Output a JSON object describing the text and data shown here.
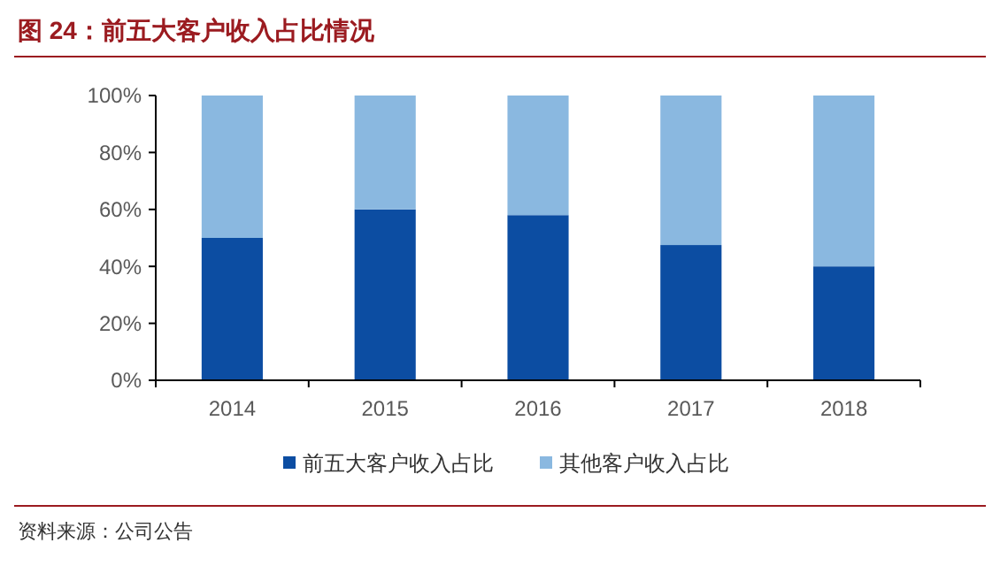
{
  "chart_data": {
    "type": "bar",
    "title": "图 24：前五大客户收入占比情况",
    "stacked": true,
    "categories": [
      "2014",
      "2015",
      "2016",
      "2017",
      "2018"
    ],
    "series": [
      {
        "name": "前五大客户收入占比",
        "color": "#0c4da2",
        "values": [
          0.5,
          0.6,
          0.58,
          0.475,
          0.4
        ]
      },
      {
        "name": "其他客户收入占比",
        "color": "#8ab8e0",
        "values": [
          0.5,
          0.4,
          0.42,
          0.525,
          0.6
        ]
      }
    ],
    "ylim": [
      0,
      1
    ],
    "yticks": [
      {
        "value": 0,
        "label": "0%"
      },
      {
        "value": 0.2,
        "label": "20%"
      },
      {
        "value": 0.4,
        "label": "40%"
      },
      {
        "value": 0.6,
        "label": "60%"
      },
      {
        "value": 0.8,
        "label": "80%"
      },
      {
        "value": 1,
        "label": "100%"
      }
    ],
    "legend": "bottom",
    "annotations": [
      "资料来源：公司公告"
    ]
  }
}
